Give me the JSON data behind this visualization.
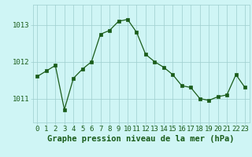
{
  "hours": [
    0,
    1,
    2,
    3,
    4,
    5,
    6,
    7,
    8,
    9,
    10,
    11,
    12,
    13,
    14,
    15,
    16,
    17,
    18,
    19,
    20,
    21,
    22,
    23
  ],
  "pressure": [
    1011.6,
    1011.75,
    1011.9,
    1010.7,
    1011.55,
    1011.8,
    1012.0,
    1012.75,
    1012.85,
    1013.1,
    1013.15,
    1012.8,
    1012.2,
    1012.0,
    1011.85,
    1011.65,
    1011.35,
    1011.3,
    1011.0,
    1010.95,
    1011.05,
    1011.1,
    1011.65,
    1011.3
  ],
  "line_color": "#1a5c1a",
  "marker_color": "#1a5c1a",
  "bg_color": "#cff5f5",
  "grid_color_major": "#9ecece",
  "grid_color_minor": "#b8e0e0",
  "xlabel": "Graphe pression niveau de la mer (hPa)",
  "ylabel_ticks": [
    1011,
    1012,
    1013
  ],
  "ylim": [
    1010.35,
    1013.55
  ],
  "xlim": [
    -0.5,
    23.5
  ],
  "tick_fontsize": 6.5,
  "label_fontsize": 7.5
}
